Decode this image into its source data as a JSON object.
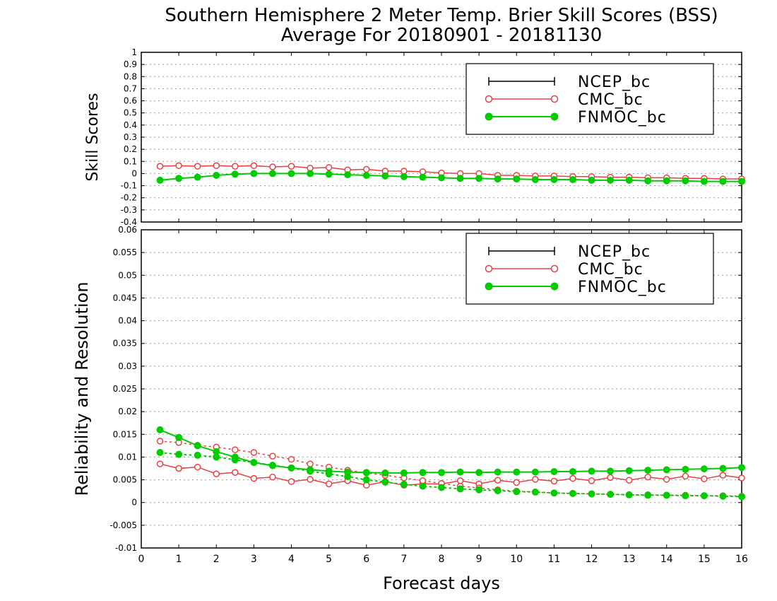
{
  "title_line1": "Southern Hemisphere 2 Meter Temp. Brier Skill Scores (BSS)",
  "title_line2": "Average For 20180901 - 20181130",
  "xlabel": "Forecast days",
  "colors": {
    "NCEP_bc": "#000000",
    "CMC_bc": "#e84040",
    "FNMOC_bc": "#00cc00"
  },
  "chart_data": [
    {
      "type": "line",
      "ylabel": "Skill Scores",
      "xlim": [
        0,
        16
      ],
      "ylim": [
        -0.4,
        1
      ],
      "x_ticks": [
        "0",
        "1",
        "2",
        "3",
        "4",
        "5",
        "6",
        "7",
        "8",
        "9",
        "10",
        "11",
        "12",
        "13",
        "14",
        "15",
        "16"
      ],
      "y_ticks": [
        "1",
        "0.9",
        "0.8",
        "0.7",
        "0.6",
        "0.5",
        "0.4",
        "0.3",
        "0.2",
        "0.1",
        "0",
        "-0.1",
        "-0.2",
        "-0.3",
        "-0.4"
      ],
      "grid": true,
      "legend": [
        "NCEP_bc",
        "CMC_bc",
        "FNMOC_bc"
      ],
      "legend_position": "top-right",
      "x": [
        0.5,
        1,
        1.5,
        2,
        2.5,
        3,
        3.5,
        4,
        4.5,
        5,
        5.5,
        6,
        6.5,
        7,
        7.5,
        8,
        8.5,
        9,
        9.5,
        10,
        10.5,
        11,
        11.5,
        12,
        12.5,
        13,
        13.5,
        14,
        14.5,
        15,
        15.5,
        16
      ],
      "series": [
        {
          "name": "CMC_bc",
          "style": "open-circle-solid",
          "values": [
            0.06,
            0.065,
            0.06,
            0.065,
            0.06,
            0.065,
            0.055,
            0.06,
            0.045,
            0.05,
            0.03,
            0.035,
            0.02,
            0.02,
            0.015,
            0.005,
            0.0,
            0.0,
            -0.015,
            -0.015,
            -0.02,
            -0.02,
            -0.025,
            -0.025,
            -0.03,
            -0.03,
            -0.035,
            -0.035,
            -0.04,
            -0.04,
            -0.045,
            -0.045
          ]
        },
        {
          "name": "FNMOC_bc",
          "style": "filled-circle-solid",
          "values": [
            -0.055,
            -0.04,
            -0.03,
            -0.015,
            -0.005,
            0.0,
            0.0,
            0.0,
            0.0,
            -0.005,
            -0.01,
            -0.015,
            -0.02,
            -0.025,
            -0.03,
            -0.035,
            -0.04,
            -0.04,
            -0.045,
            -0.045,
            -0.05,
            -0.05,
            -0.05,
            -0.055,
            -0.055,
            -0.055,
            -0.06,
            -0.06,
            -0.06,
            -0.065,
            -0.065,
            -0.065
          ]
        }
      ]
    },
    {
      "type": "line",
      "ylabel": "Reliability and Resolution",
      "xlim": [
        0,
        16
      ],
      "ylim": [
        -0.01,
        0.06
      ],
      "x_ticks": [
        "0",
        "1",
        "2",
        "3",
        "4",
        "5",
        "6",
        "7",
        "8",
        "9",
        "10",
        "11",
        "12",
        "13",
        "14",
        "15",
        "16"
      ],
      "y_ticks": [
        "0.06",
        "0.055",
        "0.05",
        "0.045",
        "0.04",
        "0.035",
        "0.03",
        "0.025",
        "0.02",
        "0.015",
        "0.01",
        "0.005",
        "0",
        "-0.005",
        "-0.01"
      ],
      "grid": true,
      "legend": [
        "NCEP_bc",
        "CMC_bc",
        "FNMOC_bc"
      ],
      "legend_position": "top-right",
      "x": [
        0.5,
        1,
        1.5,
        2,
        2.5,
        3,
        3.5,
        4,
        4.5,
        5,
        5.5,
        6,
        6.5,
        7,
        7.5,
        8,
        8.5,
        9,
        9.5,
        10,
        10.5,
        11,
        11.5,
        12,
        12.5,
        13,
        13.5,
        14,
        14.5,
        15,
        15.5,
        16
      ],
      "series": [
        {
          "name": "CMC_bc",
          "style": "open-circle-solid",
          "values": [
            0.0085,
            0.0075,
            0.0078,
            0.0063,
            0.0066,
            0.0053,
            0.0056,
            0.0046,
            0.0051,
            0.0041,
            0.0048,
            0.0038,
            0.0046,
            0.0038,
            0.0041,
            0.0041,
            0.0048,
            0.0041,
            0.0049,
            0.0044,
            0.0051,
            0.0047,
            0.0053,
            0.0048,
            0.0055,
            0.0049,
            0.0056,
            0.0051,
            0.0058,
            0.0052,
            0.006,
            0.0054
          ]
        },
        {
          "name": "CMC_bc",
          "style": "open-circle-dotted",
          "values": [
            0.0135,
            0.0132,
            0.0126,
            0.0122,
            0.0116,
            0.011,
            0.0102,
            0.0095,
            0.0085,
            0.0078,
            0.0071,
            0.0065,
            0.006,
            0.0054,
            0.0048,
            0.0042,
            0.0036,
            0.0032,
            0.0028,
            0.0025,
            0.0023,
            0.0021,
            0.002,
            0.0019,
            0.0018,
            0.0017,
            0.0017,
            0.0016,
            0.0016,
            0.0015,
            0.0015,
            0.0014
          ]
        },
        {
          "name": "FNMOC_bc",
          "style": "filled-circle-solid",
          "values": [
            0.016,
            0.0143,
            0.0125,
            0.0112,
            0.01,
            0.0088,
            0.0081,
            0.0076,
            0.0072,
            0.0069,
            0.0067,
            0.0066,
            0.0065,
            0.0065,
            0.0066,
            0.0066,
            0.0067,
            0.0066,
            0.0067,
            0.0067,
            0.0067,
            0.0068,
            0.0068,
            0.0069,
            0.0069,
            0.007,
            0.0071,
            0.0072,
            0.0073,
            0.0074,
            0.0075,
            0.0077
          ]
        },
        {
          "name": "FNMOC_bc",
          "style": "filled-circle-dotted",
          "values": [
            0.011,
            0.0106,
            0.0104,
            0.01,
            0.0094,
            0.0088,
            0.0082,
            0.0076,
            0.0069,
            0.0063,
            0.0057,
            0.005,
            0.0045,
            0.004,
            0.0036,
            0.0033,
            0.003,
            0.0028,
            0.0026,
            0.0024,
            0.0023,
            0.0021,
            0.002,
            0.0019,
            0.0018,
            0.0017,
            0.0016,
            0.0016,
            0.0015,
            0.0015,
            0.0014,
            0.0013
          ]
        }
      ]
    }
  ]
}
